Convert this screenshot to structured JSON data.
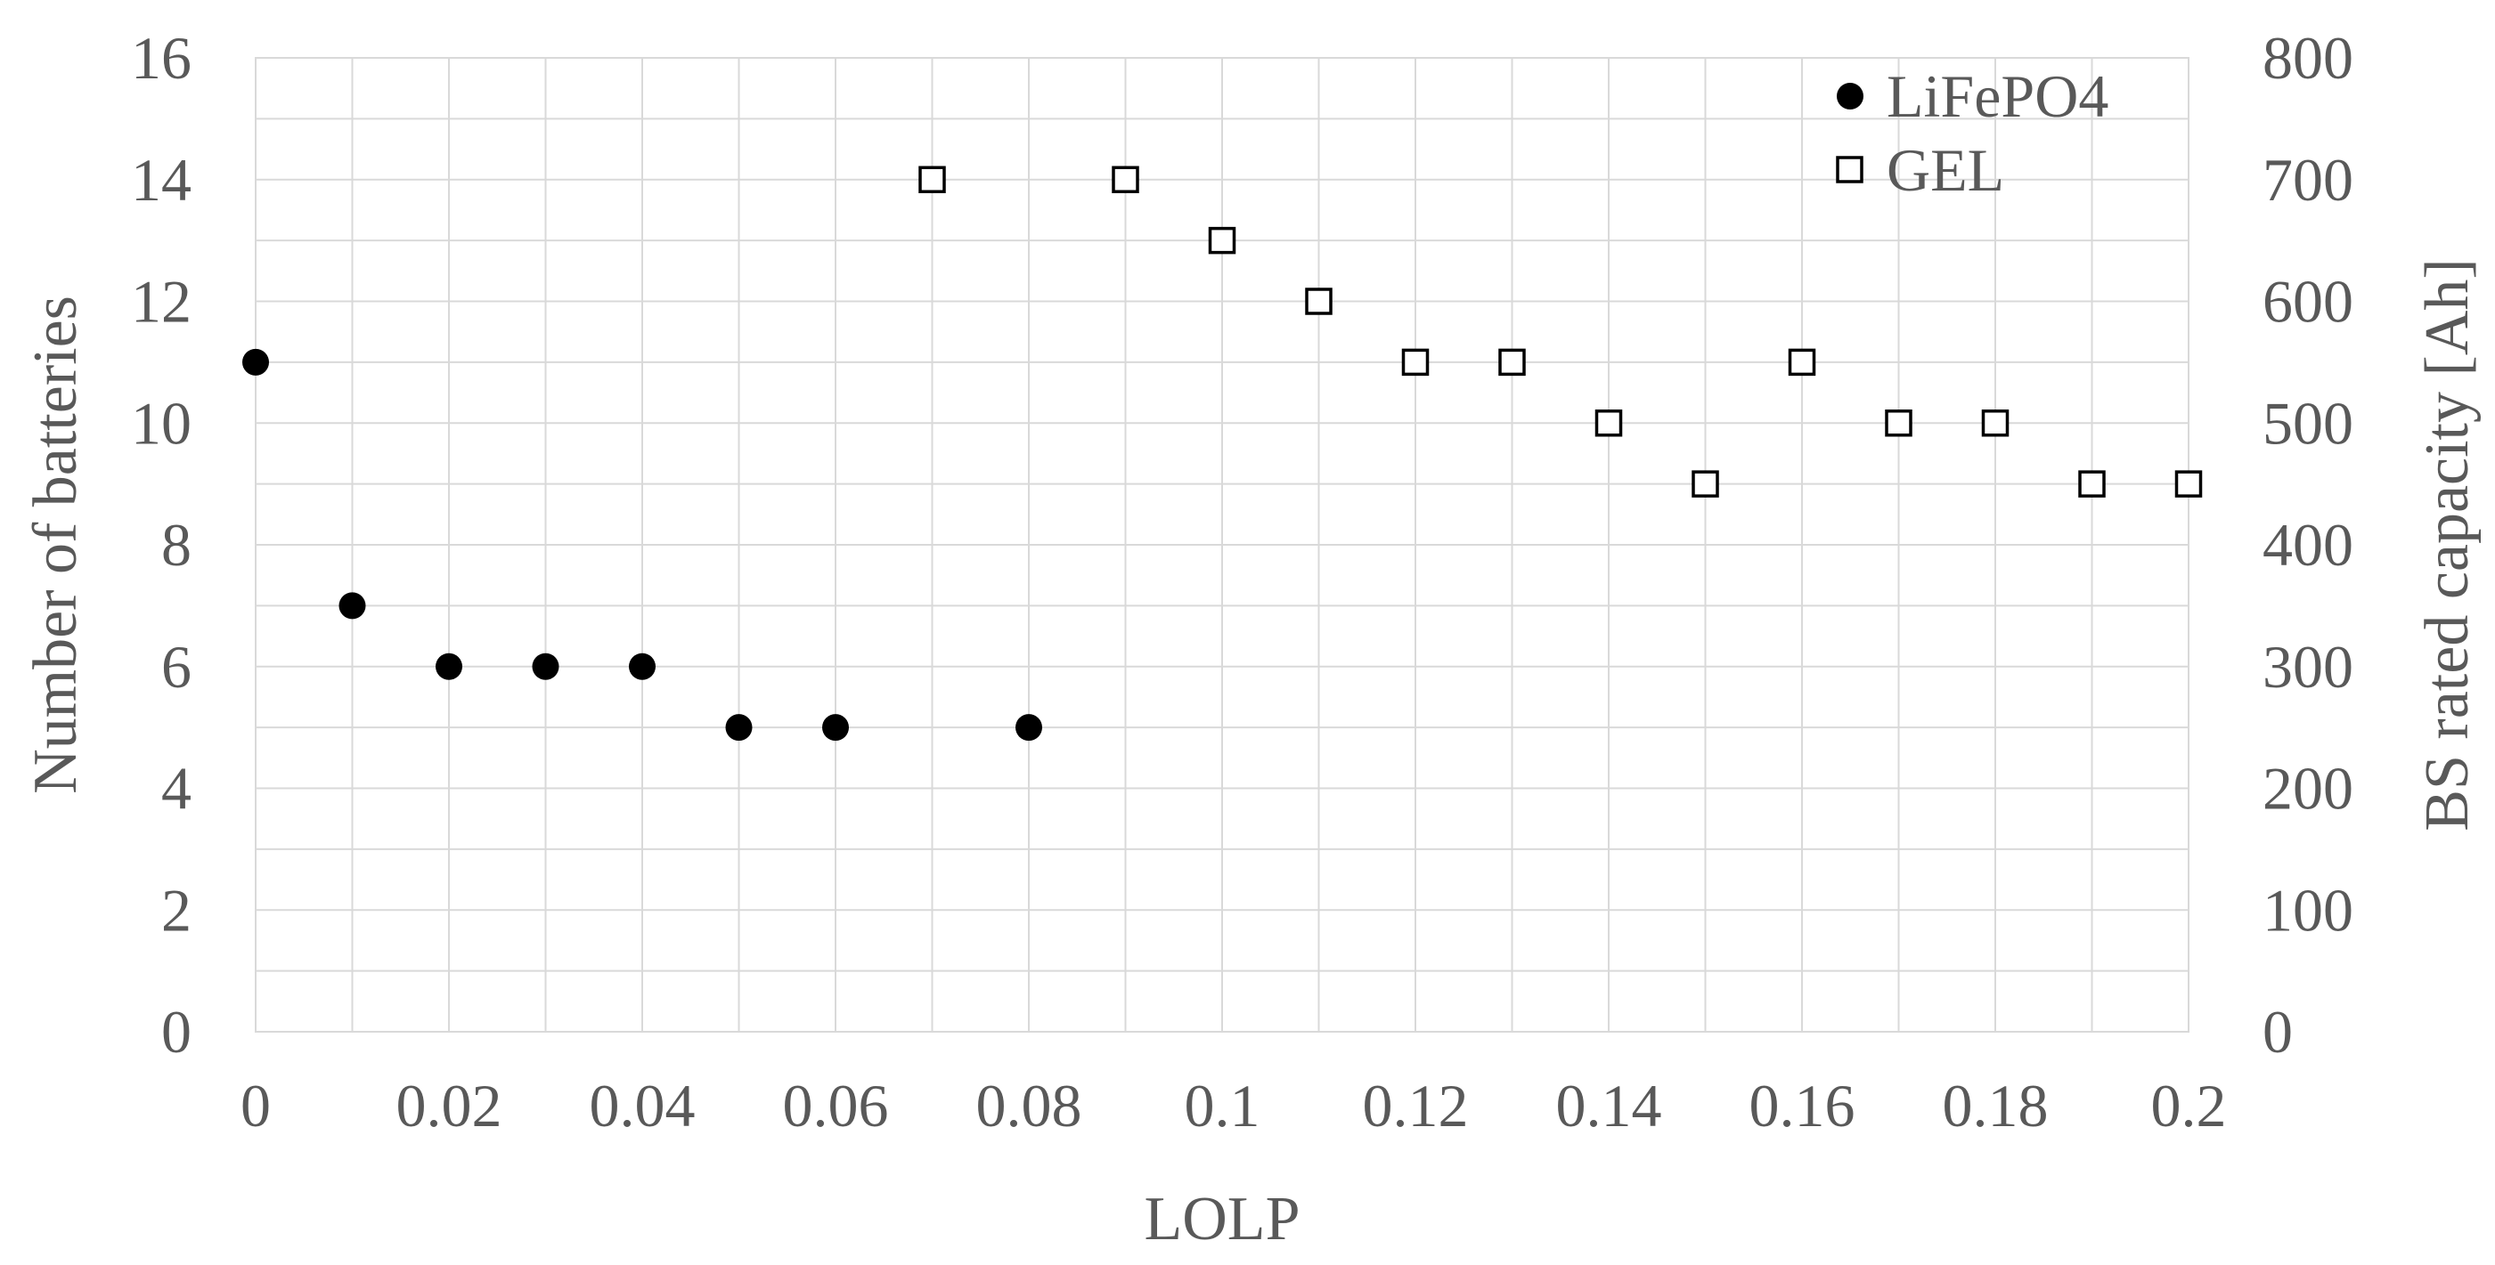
{
  "chart_data": {
    "type": "scatter",
    "xlabel": "LOLP",
    "ylabel": "Number of batteries",
    "y2label": "BS rated capacity [Ah]",
    "xlim": [
      0,
      0.2
    ],
    "ylim": [
      0,
      16
    ],
    "y2lim": [
      0,
      800
    ],
    "x_ticks": [
      0,
      0.02,
      0.04,
      0.06,
      0.08,
      0.1,
      0.12,
      0.14,
      0.16,
      0.18,
      0.2
    ],
    "x_tick_labels": [
      "0",
      "0.02",
      "0.04",
      "0.06",
      "0.08",
      "0.1",
      "0.12",
      "0.14",
      "0.16",
      "0.18",
      "0.2"
    ],
    "x_minor_step": 0.01,
    "y_ticks": [
      0,
      2,
      4,
      6,
      8,
      10,
      12,
      14,
      16
    ],
    "y_tick_labels": [
      "0",
      "2",
      "4",
      "6",
      "8",
      "10",
      "12",
      "14",
      "16"
    ],
    "y_minor_step": 1,
    "y2_ticks": [
      0,
      100,
      200,
      300,
      400,
      500,
      600,
      700,
      800
    ],
    "y2_tick_labels": [
      "0",
      "100",
      "200",
      "300",
      "400",
      "500",
      "600",
      "700",
      "800"
    ],
    "grid": true,
    "legend_position": "top-right",
    "series": [
      {
        "name": "LiFePO4",
        "marker": "filled-circle",
        "color": "#000000",
        "axis": "left",
        "x": [
          0,
          0.01,
          0.02,
          0.03,
          0.04,
          0.05,
          0.06,
          0.08
        ],
        "y": [
          11,
          7,
          6,
          6,
          6,
          5,
          5,
          5
        ]
      },
      {
        "name": "GEL",
        "marker": "open-square",
        "color": "#000000",
        "axis": "left",
        "x": [
          0.07,
          0.09,
          0.1,
          0.11,
          0.12,
          0.13,
          0.14,
          0.15,
          0.16,
          0.17,
          0.18,
          0.19,
          0.2
        ],
        "y": [
          14,
          14,
          13,
          12,
          11,
          11,
          10,
          9,
          11,
          10,
          10,
          9,
          9
        ]
      }
    ]
  }
}
